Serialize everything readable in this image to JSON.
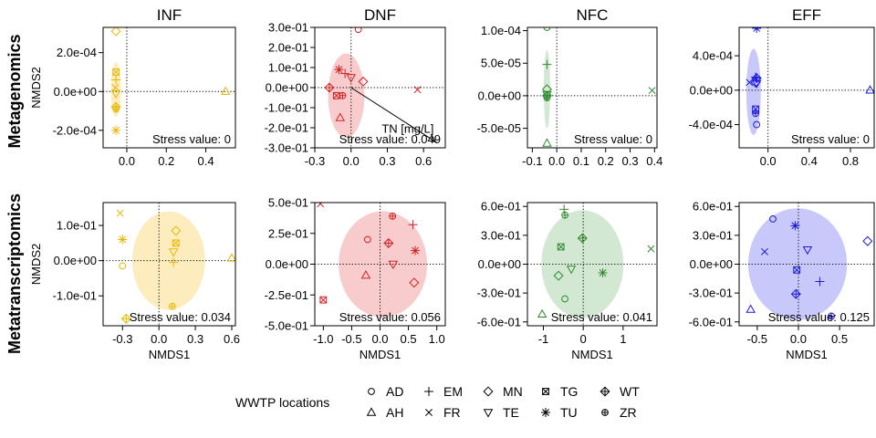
{
  "columns": [
    "INF",
    "DNF",
    "NFC",
    "EFF"
  ],
  "rows": [
    "Metagenomics",
    "Metatranscriptomics"
  ],
  "legend": {
    "title": "WWTP locations",
    "items": [
      "AD",
      "EM",
      "MN",
      "TG",
      "WT",
      "AH",
      "FR",
      "TE",
      "TU",
      "ZR"
    ],
    "symbols": {
      "AD": "circle",
      "AH": "triangle",
      "EM": "plus",
      "FR": "cross",
      "MN": "diamond",
      "TE": "triangle-down",
      "TG": "square-cross",
      "TU": "asterisk",
      "WT": "diamond-plus",
      "ZR": "circle-plus"
    }
  },
  "colors": {
    "INF": "#e8b800",
    "DNF": "#d42020",
    "NFC": "#2e8b2e",
    "EFF": "#1a1adc"
  },
  "ellipse_fills": {
    "INF": "#fcecbe",
    "DNF": "#f8cccc",
    "NFC": "#d3e8d3",
    "EFF": "#c8c8fb"
  },
  "chart_data": [
    {
      "type": "scatter",
      "title": "INF",
      "row": "Metagenomics",
      "xlabel": "",
      "ylabel": "NMDS2",
      "xlim": [
        -0.12,
        0.55
      ],
      "ylim": [
        -0.00029,
        0.00033
      ],
      "xticks": [
        0.0,
        0.2,
        0.4
      ],
      "xticklabels": [
        "0.0",
        "0.2",
        "0.4"
      ],
      "yticks": [
        -0.0002,
        0.0,
        0.0002
      ],
      "yticklabels": [
        "-2.0e-04",
        "0.0e+00",
        "2.0e-04"
      ],
      "stress": "Stress value: 0",
      "ellipse": {
        "cx": -0.055,
        "cy": 1e-05,
        "rx": 0.025,
        "ry": 0.00014
      },
      "points": [
        {
          "loc": "MN",
          "x": -0.055,
          "y": 0.00031
        },
        {
          "loc": "TG",
          "x": -0.055,
          "y": 0.0001
        },
        {
          "loc": "EM",
          "x": -0.055,
          "y": 6e-05
        },
        {
          "loc": "FR",
          "x": -0.058,
          "y": 2e-05
        },
        {
          "loc": "TE",
          "x": -0.055,
          "y": -1e-05
        },
        {
          "loc": "WT",
          "x": -0.055,
          "y": -8e-05
        },
        {
          "loc": "ZR",
          "x": -0.055,
          "y": -9e-05
        },
        {
          "loc": "TU",
          "x": -0.055,
          "y": -0.0002
        },
        {
          "loc": "AH",
          "x": 0.5,
          "y": 0.0
        }
      ]
    },
    {
      "type": "scatter",
      "title": "DNF",
      "row": "Metagenomics",
      "xlabel": "",
      "ylabel": "",
      "xlim": [
        -0.3,
        0.78
      ],
      "ylim": [
        -0.3,
        0.3
      ],
      "xticks": [
        -0.3,
        0.0,
        0.3,
        0.6
      ],
      "xticklabels": [
        "-0.3",
        "0.0",
        "0.3",
        "0.6"
      ],
      "yticks": [
        0.3,
        0.2,
        0.1,
        0.0,
        -0.1,
        -0.2,
        -0.3
      ],
      "yticklabels": [
        "3.0e-01",
        "2.0e-01",
        "1.0e-01",
        "0.0e+00",
        "-1.0e-01",
        "-2.0e-01",
        "-3.0e-01"
      ],
      "stress": "Stress value: 0.049",
      "vector": {
        "label": "TN [mg/L]",
        "x": 0.7,
        "y": -0.27
      },
      "ellipse": {
        "cx": -0.04,
        "cy": -0.04,
        "rx": 0.15,
        "ry": 0.21
      },
      "points": [
        {
          "loc": "AD",
          "x": 0.06,
          "y": 0.29
        },
        {
          "loc": "TU",
          "x": -0.1,
          "y": 0.09
        },
        {
          "loc": "EM",
          "x": -0.05,
          "y": 0.07
        },
        {
          "loc": "TE",
          "x": 0.0,
          "y": 0.05
        },
        {
          "loc": "MN",
          "x": 0.1,
          "y": 0.03
        },
        {
          "loc": "WT",
          "x": -0.18,
          "y": 0.0
        },
        {
          "loc": "TG",
          "x": -0.12,
          "y": -0.04
        },
        {
          "loc": "ZR",
          "x": -0.07,
          "y": -0.04
        },
        {
          "loc": "AH",
          "x": -0.09,
          "y": -0.15
        },
        {
          "loc": "FR",
          "x": 0.55,
          "y": -0.01
        }
      ]
    },
    {
      "type": "scatter",
      "title": "NFC",
      "row": "Metagenomics",
      "xlabel": "",
      "ylabel": "",
      "xlim": [
        -0.12,
        0.41
      ],
      "ylim": [
        -8e-05,
        0.000105
      ],
      "xticks": [
        -0.1,
        0.0,
        0.1,
        0.2,
        0.3,
        0.4
      ],
      "xticklabels": [
        "-0.1",
        "0.0",
        "0.1",
        "0.2",
        "0.3",
        "0.4"
      ],
      "yticks": [
        0.0001,
        5e-05,
        0.0,
        -5e-05
      ],
      "yticklabels": [
        "1.0e-04",
        "5.0e-05",
        "0.0e+00",
        "-5.0e-05"
      ],
      "stress": "Stress value: 0",
      "ellipse": {
        "cx": -0.04,
        "cy": 1e-05,
        "rx": 0.013,
        "ry": 6e-05
      },
      "points": [
        {
          "loc": "AD",
          "x": -0.04,
          "y": 0.000105
        },
        {
          "loc": "EM",
          "x": -0.04,
          "y": 4.8e-05
        },
        {
          "loc": "MN",
          "x": -0.04,
          "y": 1e-05
        },
        {
          "loc": "TE",
          "x": -0.04,
          "y": 2e-06
        },
        {
          "loc": "WT",
          "x": -0.04,
          "y": 0.0
        },
        {
          "loc": "ZR",
          "x": -0.04,
          "y": -3e-06
        },
        {
          "loc": "AH",
          "x": -0.04,
          "y": -7.3e-05
        },
        {
          "loc": "FR",
          "x": 0.39,
          "y": 8e-06
        }
      ]
    },
    {
      "type": "scatter",
      "title": "EFF",
      "row": "Metagenomics",
      "xlabel": "",
      "ylabel": "",
      "xlim": [
        -0.28,
        1.03
      ],
      "ylim": [
        -0.00067,
        0.00073
      ],
      "xticks": [
        0.0,
        0.4,
        0.8
      ],
      "xticklabels": [
        "0.0",
        "0.4",
        "0.8"
      ],
      "yticks": [
        0.0004,
        0.0,
        -0.0004
      ],
      "yticklabels": [
        "4.0e-04",
        "0.0e+00",
        "-4.0e-04"
      ],
      "stress": "Stress value: 0",
      "ellipse": {
        "cx": -0.14,
        "cy": -2e-05,
        "rx": 0.07,
        "ry": 0.0005
      },
      "points": [
        {
          "loc": "TU",
          "x": -0.11,
          "y": 0.00072
        },
        {
          "loc": "EM",
          "x": -0.12,
          "y": 0.00015
        },
        {
          "loc": "WT",
          "x": -0.11,
          "y": 0.00014
        },
        {
          "loc": "MN",
          "x": -0.12,
          "y": 9e-05
        },
        {
          "loc": "FR",
          "x": -0.18,
          "y": 9e-05
        },
        {
          "loc": "TE",
          "x": -0.11,
          "y": 8e-05
        },
        {
          "loc": "TG",
          "x": -0.12,
          "y": -0.00022
        },
        {
          "loc": "ZR",
          "x": -0.12,
          "y": -0.00027
        },
        {
          "loc": "AD",
          "x": -0.11,
          "y": -0.0004
        },
        {
          "loc": "AH",
          "x": 0.99,
          "y": 0.0
        }
      ]
    },
    {
      "type": "scatter",
      "title": "",
      "row": "Metatranscriptomics",
      "xlabel": "NMDS1",
      "ylabel": "NMDS2",
      "xlim": [
        -0.46,
        0.63
      ],
      "ylim": [
        -0.185,
        0.165
      ],
      "xticks": [
        -0.3,
        0.0,
        0.3,
        0.6
      ],
      "xticklabels": [
        "-0.3",
        "0.0",
        "0.3",
        "0.6"
      ],
      "yticks": [
        0.1,
        0.0,
        -0.1
      ],
      "yticklabels": [
        "1.0e-01",
        "0.0e+00",
        "-1.0e-01"
      ],
      "stress": "Stress value: 0.034",
      "ellipse": {
        "cx": 0.08,
        "cy": 0.0,
        "rx": 0.3,
        "ry": 0.14
      },
      "points": [
        {
          "loc": "FR",
          "x": -0.32,
          "y": 0.135
        },
        {
          "loc": "MN",
          "x": 0.14,
          "y": 0.085
        },
        {
          "loc": "TU",
          "x": -0.3,
          "y": 0.06
        },
        {
          "loc": "TG",
          "x": 0.14,
          "y": 0.05
        },
        {
          "loc": "TE",
          "x": 0.12,
          "y": 0.025
        },
        {
          "loc": "EM",
          "x": 0.12,
          "y": -0.005
        },
        {
          "loc": "AD",
          "x": -0.3,
          "y": -0.015
        },
        {
          "loc": "AH",
          "x": 0.6,
          "y": 0.007
        },
        {
          "loc": "ZR",
          "x": 0.11,
          "y": -0.13
        },
        {
          "loc": "WT",
          "x": -0.27,
          "y": -0.165
        }
      ]
    },
    {
      "type": "scatter",
      "title": "",
      "row": "Metatranscriptomics",
      "xlabel": "NMDS1",
      "ylabel": "",
      "xlim": [
        -1.15,
        1.15
      ],
      "ylim": [
        -0.5,
        0.5
      ],
      "xticks": [
        -1.0,
        -0.5,
        0.0,
        0.5,
        1.0
      ],
      "xticklabels": [
        "-1.0",
        "-0.5",
        "0.0",
        "0.5",
        "1.0"
      ],
      "yticks": [
        0.5,
        0.25,
        0.0,
        -0.25,
        -0.5
      ],
      "yticklabels": [
        "5.0e-01",
        "2.5e-01",
        "0.0e+00",
        "-2.5e-01",
        "-5.0e-01"
      ],
      "stress": "Stress value: 0.056",
      "ellipse": {
        "cx": 0.05,
        "cy": 0.0,
        "rx": 0.78,
        "ry": 0.43
      },
      "points": [
        {
          "loc": "FR",
          "x": -1.05,
          "y": 0.49
        },
        {
          "loc": "ZR",
          "x": 0.22,
          "y": 0.39
        },
        {
          "loc": "EM",
          "x": 0.58,
          "y": 0.32
        },
        {
          "loc": "AD",
          "x": -0.22,
          "y": 0.2
        },
        {
          "loc": "WT",
          "x": 0.15,
          "y": 0.17
        },
        {
          "loc": "TU",
          "x": 0.62,
          "y": 0.11
        },
        {
          "loc": "TE",
          "x": 0.23,
          "y": 0.0
        },
        {
          "loc": "AH",
          "x": -0.25,
          "y": -0.09
        },
        {
          "loc": "MN",
          "x": 0.6,
          "y": -0.15
        },
        {
          "loc": "TG",
          "x": -1.0,
          "y": -0.29
        }
      ]
    },
    {
      "type": "scatter",
      "title": "",
      "row": "Metatranscriptomics",
      "xlabel": "NMDS1",
      "ylabel": "",
      "xlim": [
        -1.4,
        1.85
      ],
      "ylim": [
        -0.64,
        0.64
      ],
      "xticks": [
        -1,
        0,
        1
      ],
      "xticklabels": [
        "-1",
        "0",
        "1"
      ],
      "yticks": [
        0.6,
        0.3,
        0.0,
        -0.3,
        -0.6
      ],
      "yticklabels": [
        "6.0e-01",
        "3.0e-01",
        "0.0e+00",
        "-3.0e-01",
        "-6.0e-01"
      ],
      "stress": "Stress value: 0.041",
      "ellipse": {
        "cx": -0.02,
        "cy": 0.0,
        "rx": 1.03,
        "ry": 0.56
      },
      "points": [
        {
          "loc": "EM",
          "x": -0.48,
          "y": 0.57
        },
        {
          "loc": "ZR",
          "x": -0.46,
          "y": 0.51
        },
        {
          "loc": "WT",
          "x": -0.02,
          "y": 0.27
        },
        {
          "loc": "TG",
          "x": -0.56,
          "y": 0.18
        },
        {
          "loc": "FR",
          "x": 1.7,
          "y": 0.16
        },
        {
          "loc": "TE",
          "x": -0.3,
          "y": -0.05
        },
        {
          "loc": "TU",
          "x": 0.49,
          "y": -0.09
        },
        {
          "loc": "MN",
          "x": -0.62,
          "y": -0.12
        },
        {
          "loc": "AD",
          "x": -0.46,
          "y": -0.36
        },
        {
          "loc": "AH",
          "x": -1.03,
          "y": -0.52
        }
      ]
    },
    {
      "type": "scatter",
      "title": "",
      "row": "Metatranscriptomics",
      "xlabel": "NMDS1",
      "ylabel": "",
      "xlim": [
        -0.72,
        0.92
      ],
      "ylim": [
        -0.64,
        0.64
      ],
      "xticks": [
        -0.5,
        0.0,
        0.5
      ],
      "xticklabels": [
        "-0.5",
        "0.0",
        "0.5"
      ],
      "yticks": [
        0.6,
        0.3,
        0.0,
        -0.3,
        -0.6
      ],
      "yticklabels": [
        "6.0e-01",
        "3.0e-01",
        "0.0e+00",
        "-3.0e-01",
        "-6.0e-01"
      ],
      "stress": "Stress value: 0.125",
      "ellipse": {
        "cx": -0.01,
        "cy": 0.0,
        "rx": 0.6,
        "ry": 0.58
      },
      "points": [
        {
          "loc": "AD",
          "x": -0.31,
          "y": 0.47
        },
        {
          "loc": "TU",
          "x": -0.04,
          "y": 0.4
        },
        {
          "loc": "MN",
          "x": 0.84,
          "y": 0.24
        },
        {
          "loc": "FR",
          "x": -0.41,
          "y": 0.13
        },
        {
          "loc": "TE",
          "x": 0.11,
          "y": 0.15
        },
        {
          "loc": "TG",
          "x": -0.02,
          "y": -0.06
        },
        {
          "loc": "EM",
          "x": 0.26,
          "y": -0.18
        },
        {
          "loc": "WT",
          "x": -0.03,
          "y": -0.31
        },
        {
          "loc": "ZR",
          "x": 0.4,
          "y": -0.54
        },
        {
          "loc": "AH",
          "x": -0.58,
          "y": -0.47
        }
      ]
    }
  ]
}
